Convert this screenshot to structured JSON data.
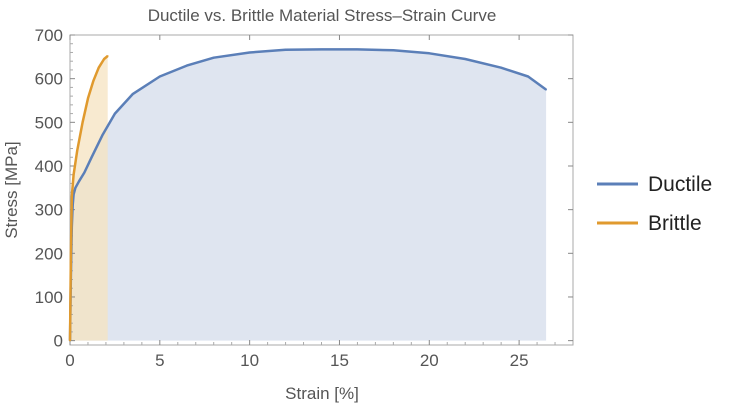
{
  "chart_data": {
    "type": "line",
    "title": "Ductile vs. Brittle Material Stress–Strain Curve",
    "xlabel": "Strain [%]",
    "ylabel": "Stress [MPa]",
    "xlim": [
      0,
      28
    ],
    "ylim": [
      -10,
      700
    ],
    "xticks": [
      0,
      5,
      10,
      15,
      20,
      25
    ],
    "yticks": [
      0,
      100,
      200,
      300,
      400,
      500,
      600,
      700
    ],
    "x_tick_labels": [
      "0",
      "5",
      "10",
      "15",
      "20",
      "25"
    ],
    "y_tick_labels": [
      "0",
      "100",
      "200",
      "300",
      "400",
      "500",
      "600",
      "700"
    ],
    "legend_position": "right",
    "series": [
      {
        "name": "Ductile",
        "color": "#5b7fb8",
        "fill": "#dfe5f0",
        "fill_end_x": 26.5,
        "x": [
          0,
          0.05,
          0.1,
          0.15,
          0.2,
          0.3,
          0.5,
          0.8,
          1.2,
          1.8,
          2.5,
          3.5,
          5,
          6.5,
          8,
          10,
          12,
          14,
          16,
          18,
          20,
          22,
          24,
          25.5,
          26.5
        ],
        "y": [
          0,
          150,
          260,
          310,
          335,
          350,
          365,
          385,
          420,
          470,
          520,
          565,
          605,
          630,
          648,
          660,
          666,
          667,
          667,
          665,
          658,
          645,
          625,
          605,
          575
        ]
      },
      {
        "name": "Brittle",
        "color": "#e09a2e",
        "fill": "#f6e3c0",
        "fill_end_x": 2.1,
        "x": [
          0,
          0.05,
          0.1,
          0.2,
          0.4,
          0.7,
          1.0,
          1.3,
          1.6,
          1.9,
          2.1
        ],
        "y": [
          0,
          200,
          330,
          380,
          435,
          500,
          555,
          595,
          625,
          645,
          652
        ]
      }
    ]
  }
}
